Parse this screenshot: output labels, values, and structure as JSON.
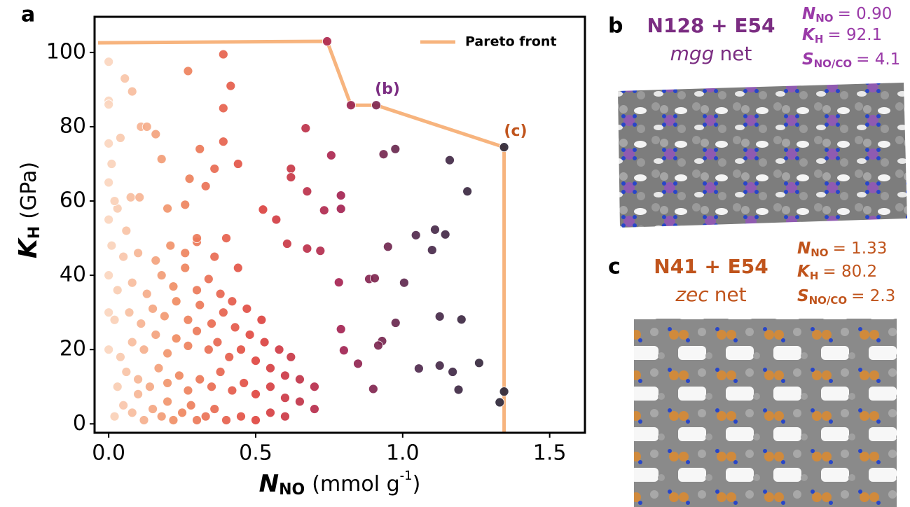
{
  "chart_data": {
    "type": "scatter",
    "panel_label": "a",
    "x_label": {
      "symbol": "N",
      "sub": "NO",
      "pre": "(mmol g",
      "sup": "-1",
      "post": ")"
    },
    "y_label": {
      "symbol": "K",
      "sub": "H",
      "unit": "(GPa)"
    },
    "xlim": [
      -0.048,
      1.62
    ],
    "ylim": [
      -2.4,
      109.6
    ],
    "xticks": [
      {
        "value": 0,
        "label": "0.0"
      },
      0.5,
      {
        "value": 1,
        "label": "1.0"
      },
      1.5
    ],
    "yticks": [
      0,
      20,
      40,
      60,
      80,
      100
    ],
    "colormap": [
      "#fde6d2",
      "#f08c62",
      "#df4540",
      "#a52452",
      "#4d2a4e",
      "#2e2838"
    ],
    "x": [
      0.02,
      0.05,
      0.08,
      0.1,
      0.12,
      0.15,
      0.18,
      0.2,
      0.22,
      0.25,
      0.28,
      0.3,
      0.33,
      0.36,
      0.4,
      0.45,
      0.5,
      0.55,
      0.6,
      0.03,
      0.06,
      0.1,
      0.14,
      0.17,
      0.2,
      0.24,
      0.27,
      0.31,
      0.35,
      0.38,
      0.42,
      0.46,
      0.5,
      0.55,
      0.6,
      0.65,
      0.7,
      0.04,
      0.08,
      0.12,
      0.16,
      0.2,
      0.23,
      0.27,
      0.3,
      0.34,
      0.37,
      0.41,
      0.45,
      0.5,
      0.55,
      0.6,
      0.65,
      0.7,
      0.02,
      0.07,
      0.11,
      0.15,
      0.19,
      0.23,
      0.27,
      0.31,
      0.35,
      0.39,
      0.43,
      0.48,
      0.53,
      0.58,
      0.62,
      0.03,
      0.08,
      0.13,
      0.18,
      0.22,
      0.26,
      0.3,
      0.34,
      0.38,
      0.42,
      0.47,
      0.52,
      0.05,
      0.1,
      0.16,
      0.21,
      0.26,
      0.3,
      0.36,
      0.4,
      0.44,
      0.0,
      0.03,
      0.06,
      0.0,
      0.02,
      0.01,
      0.26,
      0.3,
      0.33,
      0.0,
      0.0,
      0.0,
      0.01,
      0.0,
      0.39,
      0.27,
      0.055,
      0.08,
      0.415,
      0.39,
      0.0,
      0.0,
      0.67,
      0.11,
      0.13,
      0.16,
      0.0,
      0.04,
      0.39,
      0.935,
      0.975,
      0.757,
      1.16,
      0.31,
      0.18,
      0.44,
      0.62,
      1.22,
      0.36,
      0.275,
      0.675,
      0.79,
      0.62,
      0.733,
      0.79,
      0.525,
      0.57,
      0.075,
      0.105,
      0.2,
      1.045,
      1.11,
      1.145,
      0.95,
      1.1,
      0.607,
      0.675,
      0.72,
      0.886,
      1.005,
      0.905,
      0.783,
      0.976,
      1.126,
      1.2,
      0.93,
      0.917,
      0.848,
      1.126,
      1.17,
      1.26,
      1.055,
      0.9,
      1.19,
      1.33,
      1.345,
      0.79,
      0.8,
      0.743,
      0.824,
      0.91,
      1.345
    ],
    "y": [
      2,
      5,
      3,
      8,
      1,
      4,
      2,
      6,
      1,
      3,
      5,
      1,
      2,
      4,
      1,
      2,
      1,
      3,
      2,
      10,
      14,
      12,
      10,
      15,
      11,
      13,
      9,
      12,
      10,
      14,
      9,
      11,
      8,
      10,
      7,
      6,
      4,
      18,
      22,
      20,
      24,
      19,
      23,
      21,
      25,
      20,
      22,
      18,
      20,
      17,
      15,
      13,
      12,
      10,
      28,
      30,
      27,
      31,
      29,
      33,
      28,
      32,
      27,
      30,
      26,
      24,
      22,
      20,
      18,
      36,
      38,
      35,
      40,
      37,
      42,
      36,
      39,
      35,
      33,
      31,
      28,
      45,
      46,
      44,
      48,
      46,
      49,
      45,
      50,
      42,
      55,
      58,
      52,
      65,
      60,
      70,
      59,
      50,
      64,
      40,
      30,
      20,
      48,
      97.5,
      99.5,
      95,
      93,
      89.5,
      91,
      85,
      87,
      86,
      79.6,
      80,
      80,
      78,
      75.5,
      77,
      76,
      72.6,
      74,
      72.3,
      71,
      74,
      71.3,
      70,
      68.7,
      62.6,
      68.7,
      66,
      62.6,
      61.5,
      66.4,
      57.5,
      57.9,
      57.7,
      55,
      61,
      61,
      58,
      50.8,
      52.3,
      51,
      47.7,
      46.8,
      48.5,
      47.2,
      46.6,
      39,
      38,
      39.2,
      38.1,
      27.2,
      28.9,
      28.1,
      22.3,
      21.1,
      16.2,
      15.7,
      14,
      16.4,
      14.9,
      9.4,
      9.2,
      5.8,
      8.7,
      25.5,
      19.8,
      103,
      85.8,
      85.8,
      74.5
    ],
    "lines": [
      {
        "name": "Pareto front",
        "color": "#f7b47e",
        "x": [
          -0.036,
          0.743,
          0.824,
          0.91,
          1.345,
          1.345
        ],
        "y": [
          102.6,
          103,
          85.8,
          85.8,
          74.5,
          -2.4
        ]
      }
    ],
    "annotations": [
      {
        "text": "(b)",
        "color": "#7b2d82"
      },
      {
        "text": "(c)",
        "color": "#c0541c"
      }
    ]
  },
  "structures": [
    {
      "label": "b",
      "title": "N128 + E54",
      "net": "mgg",
      "net_suffix": "net",
      "color": "#7b2d82",
      "prop_color": "#9a3aa8",
      "props": [
        {
          "symbol": "N",
          "sub": "NO",
          "text": "= 0.90"
        },
        {
          "symbol": "K",
          "sub": "H",
          "text": "= 92.1"
        },
        {
          "symbol": "S",
          "sub": "NO/CO",
          "text": "= 4.1"
        }
      ]
    },
    {
      "label": "c",
      "title": "N41 + E54",
      "net": "zec",
      "net_suffix": "net",
      "color": "#c0541c",
      "prop_color": "#c0541c",
      "props": [
        {
          "symbol": "N",
          "sub": "NO",
          "text": "= 1.33"
        },
        {
          "symbol": "K",
          "sub": "H",
          "text": "= 80.2"
        },
        {
          "symbol": "S",
          "sub": "NO/CO",
          "text": "= 2.3"
        }
      ]
    }
  ]
}
